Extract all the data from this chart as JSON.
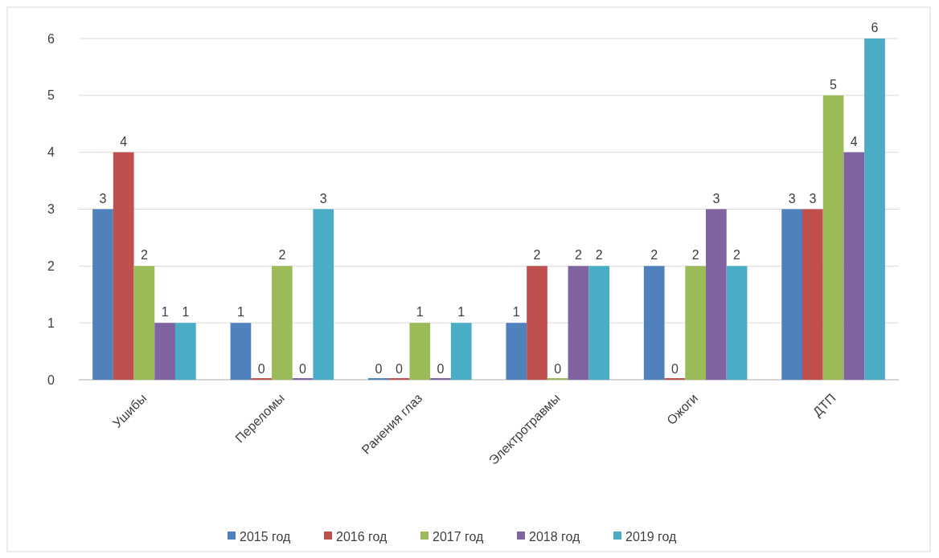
{
  "chart_data": {
    "type": "bar",
    "categories": [
      "Ушибы",
      "Переломы",
      "Ранения глаз",
      "Электротравмы",
      "Ожоги",
      "ДТП"
    ],
    "series": [
      {
        "name": "2015 год",
        "color": "#4f81bd",
        "values": [
          3,
          1,
          0,
          1,
          2,
          3
        ]
      },
      {
        "name": "2016 год",
        "color": "#c0504d",
        "values": [
          4,
          0,
          0,
          2,
          0,
          3
        ]
      },
      {
        "name": "2017 год",
        "color": "#9bbb59",
        "values": [
          2,
          2,
          1,
          0,
          2,
          5
        ]
      },
      {
        "name": "2018 год",
        "color": "#8064a2",
        "values": [
          1,
          0,
          0,
          2,
          3,
          4
        ]
      },
      {
        "name": "2019 год",
        "color": "#4bacc6",
        "values": [
          1,
          3,
          1,
          2,
          2,
          6
        ]
      }
    ],
    "ylim": [
      0,
      6
    ],
    "yticks": [
      0,
      1,
      2,
      3,
      4,
      5,
      6
    ],
    "grid": "y",
    "legend": "bottom",
    "data_labels": true
  }
}
